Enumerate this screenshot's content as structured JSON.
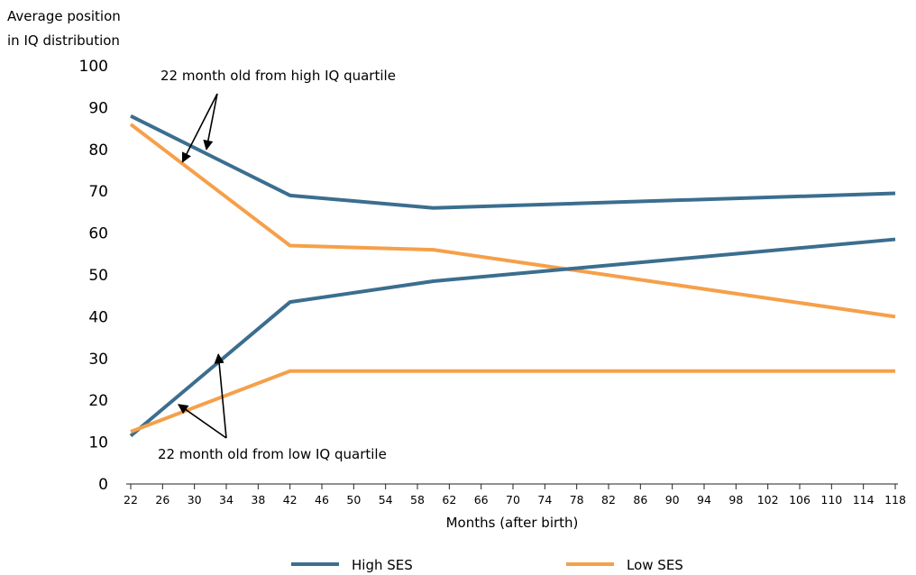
{
  "chart_data": {
    "type": "line",
    "ylabel": [
      "Average position",
      "in IQ distribution"
    ],
    "xlabel": "Months (after birth)",
    "ylim": [
      0,
      100
    ],
    "yticks": [
      0,
      10,
      20,
      30,
      40,
      50,
      60,
      70,
      80,
      90,
      100
    ],
    "xlim": [
      22,
      118
    ],
    "xticks": [
      22,
      26,
      30,
      34,
      38,
      42,
      46,
      50,
      54,
      58,
      62,
      66,
      70,
      74,
      78,
      82,
      86,
      90,
      94,
      98,
      102,
      106,
      110,
      114,
      118
    ],
    "grid": false,
    "legend_position": "bottom",
    "series": [
      {
        "name": "High SES",
        "group": "high IQ quartile",
        "color": "#3b6e8f",
        "points": [
          [
            22,
            88
          ],
          [
            42,
            69
          ],
          [
            60,
            66
          ],
          [
            118,
            69.5
          ]
        ]
      },
      {
        "name": "Low SES",
        "group": "high IQ quartile",
        "color": "#f5a04a",
        "points": [
          [
            22,
            86
          ],
          [
            42,
            57
          ],
          [
            60,
            56
          ],
          [
            118,
            40
          ]
        ]
      },
      {
        "name": "High SES",
        "group": "low IQ quartile",
        "color": "#3b6e8f",
        "points": [
          [
            22,
            11.5
          ],
          [
            42,
            43.5
          ],
          [
            60,
            48.5
          ],
          [
            118,
            58.5
          ]
        ]
      },
      {
        "name": "Low SES",
        "group": "low IQ quartile",
        "color": "#f5a04a",
        "points": [
          [
            22,
            12.5
          ],
          [
            42,
            27
          ],
          [
            60,
            27
          ],
          [
            118,
            27
          ]
        ]
      }
    ],
    "legend": [
      {
        "label": "High SES",
        "color": "#3b6e8f"
      },
      {
        "label": "Low SES",
        "color": "#f5a04a"
      }
    ],
    "annotations": [
      {
        "text": "22 month old from high IQ quartile",
        "targets": [
          [
            28.5,
            77
          ],
          [
            31.5,
            80
          ]
        ]
      },
      {
        "text": "22 month old from low IQ quartile",
        "targets": [
          [
            33,
            31
          ],
          [
            28,
            19
          ]
        ]
      }
    ]
  }
}
